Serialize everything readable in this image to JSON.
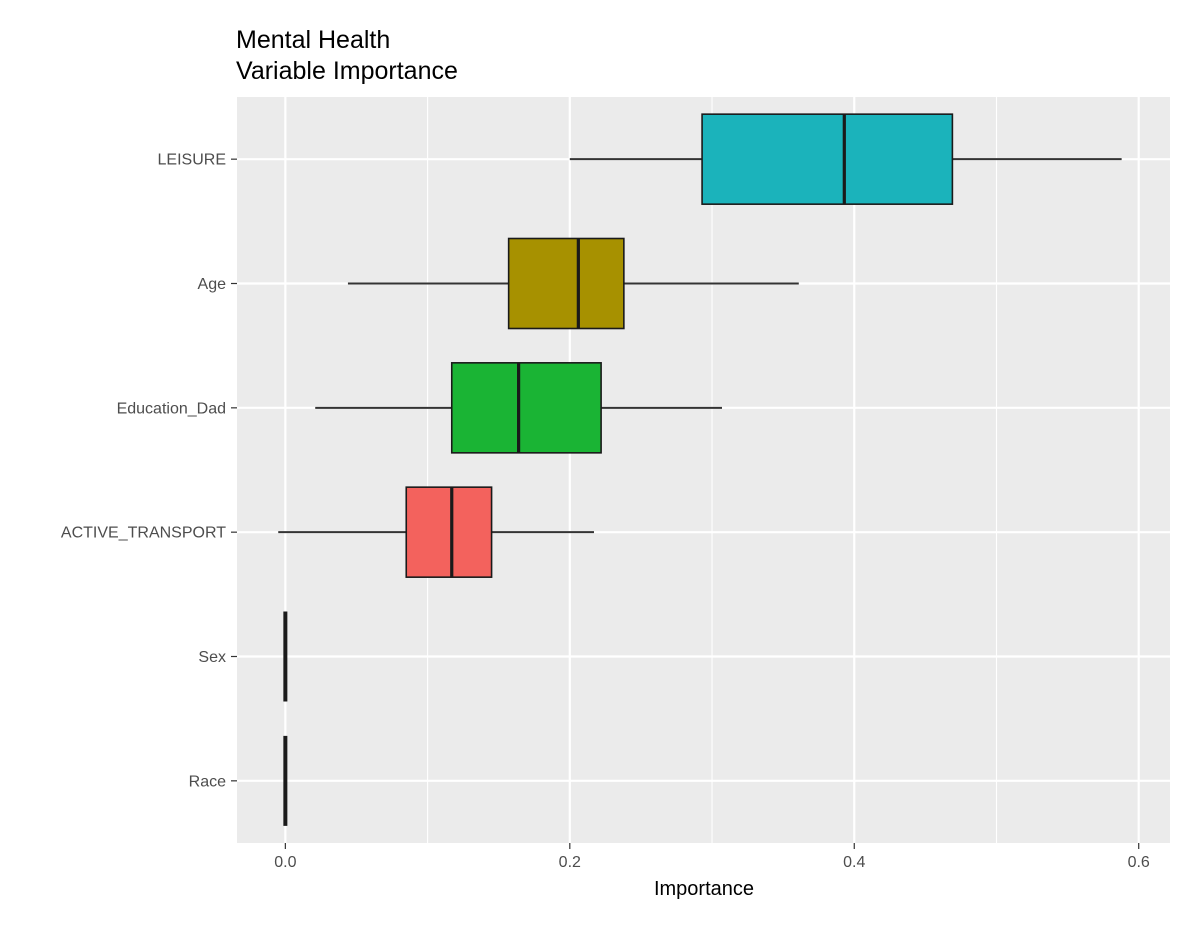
{
  "chart_data": {
    "type": "boxplot",
    "orientation": "horizontal",
    "title": "Mental Health",
    "subtitle": "Variable Importance",
    "xlabel": "Importance",
    "ylabel": "",
    "xlim": [
      -0.034,
      0.622
    ],
    "xticks": [
      0.0,
      0.2,
      0.4,
      0.6
    ],
    "xtick_labels": [
      "0.0",
      "0.2",
      "0.4",
      "0.6"
    ],
    "grid": true,
    "legend": "none",
    "categories": [
      "LEISURE",
      "Age",
      "Education_Dad",
      "ACTIVE_TRANSPORT",
      "Sex",
      "Race"
    ],
    "boxes": [
      {
        "name": "LEISURE",
        "whisker_low": 0.2,
        "q1": 0.293,
        "median": 0.393,
        "q3": 0.469,
        "whisker_high": 0.588,
        "color": "#1bb3bb"
      },
      {
        "name": "Age",
        "whisker_low": 0.044,
        "q1": 0.157,
        "median": 0.206,
        "q3": 0.238,
        "whisker_high": 0.361,
        "color": "#a79100"
      },
      {
        "name": "Education_Dad",
        "whisker_low": 0.021,
        "q1": 0.117,
        "median": 0.164,
        "q3": 0.222,
        "whisker_high": 0.307,
        "color": "#1ab434"
      },
      {
        "name": "ACTIVE_TRANSPORT",
        "whisker_low": -0.005,
        "q1": 0.085,
        "median": 0.117,
        "q3": 0.145,
        "whisker_high": 0.217,
        "color": "#f3625d"
      },
      {
        "name": "Sex",
        "whisker_low": 0.0,
        "q1": 0.0,
        "median": 0.0,
        "q3": 0.0,
        "whisker_high": 0.0,
        "color": "#1a1a1a"
      },
      {
        "name": "Race",
        "whisker_low": 0.0,
        "q1": 0.0,
        "median": 0.0,
        "q3": 0.0,
        "whisker_high": 0.0,
        "color": "#1a1a1a"
      }
    ]
  }
}
